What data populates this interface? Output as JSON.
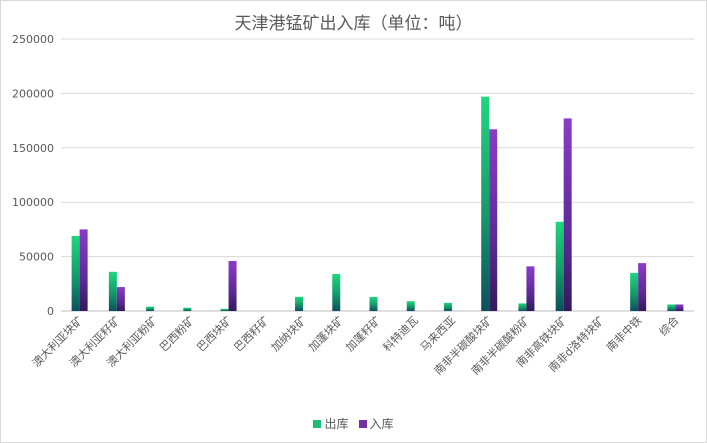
{
  "chart_data": {
    "type": "bar",
    "title": "天津港锰矿出入库（单位：吨）",
    "categories": [
      "澳大利亚块矿",
      "澳大利亚籽矿",
      "澳大利亚粉矿",
      "巴西粉矿",
      "巴西块矿",
      "巴西籽矿",
      "加纳块矿",
      "加蓬块矿",
      "加蓬籽矿",
      "科特迪瓦",
      "马来西亚",
      "南非半碳酸块矿",
      "南非半碳酸粉矿",
      "南非高铁块矿",
      "南非d洛特块矿",
      "南非中铁",
      "综合"
    ],
    "series": [
      {
        "name": "出库",
        "color": "#1dbf73",
        "values": [
          69000,
          36000,
          4000,
          3000,
          2000,
          0,
          13000,
          34000,
          13000,
          9000,
          7500,
          197000,
          7000,
          82000,
          0,
          35000,
          6000
        ]
      },
      {
        "name": "入库",
        "color": "#7030a0",
        "values": [
          75000,
          22000,
          0,
          0,
          46000,
          0,
          0,
          0,
          0,
          0,
          0,
          167000,
          41000,
          177000,
          0,
          44000,
          6000
        ]
      }
    ],
    "ylim": [
      0,
      250000
    ],
    "yticks": [
      "0",
      "50000",
      "100000",
      "150000",
      "200000",
      "250000"
    ],
    "grid": true,
    "legend_position": "bottom"
  }
}
